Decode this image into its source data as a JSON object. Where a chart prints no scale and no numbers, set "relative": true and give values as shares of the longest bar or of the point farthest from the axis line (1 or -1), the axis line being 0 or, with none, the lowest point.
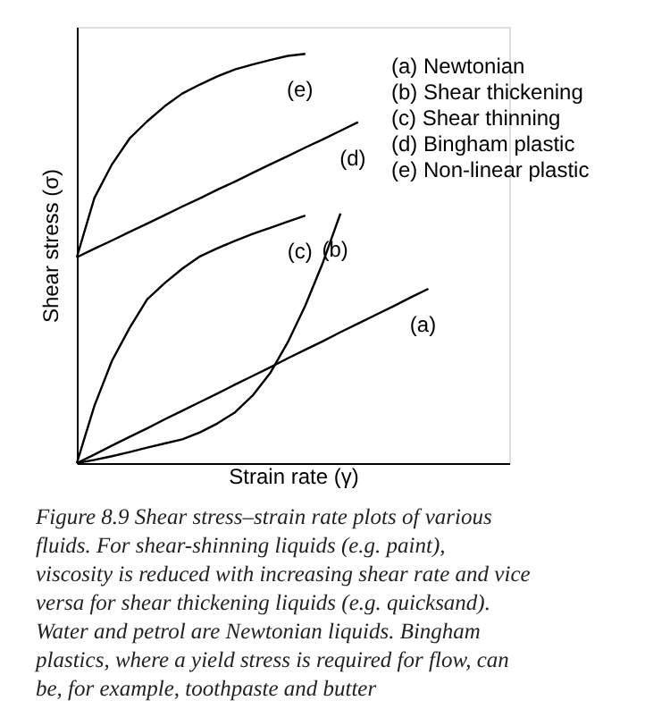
{
  "chart_data": {
    "type": "line",
    "relative": true,
    "xlabel": "Strain rate (γ)",
    "ylabel": "Shear stress (σ)",
    "grid": false,
    "marker": "none",
    "line_style": "solid",
    "categories": [
      null,
      null,
      null,
      null,
      null,
      null,
      null,
      null,
      null,
      null,
      null,
      null,
      null,
      null,
      null,
      null,
      null,
      null,
      null,
      null,
      null,
      null,
      null,
      null,
      null
    ],
    "series": [
      {
        "name": "(a)",
        "color": "#000000",
        "values": [
          0,
          0.021,
          0.043,
          0.064,
          0.085,
          0.107,
          0.128,
          0.149,
          0.17,
          0.192,
          0.213,
          0.234,
          0.256,
          0.277,
          0.298,
          0.32,
          0.341,
          0.362,
          0.383,
          0.405,
          0.426,
          null,
          null,
          null,
          null
        ]
      },
      {
        "name": "(b)",
        "color": "#000000",
        "values": [
          0,
          0.008,
          0.017,
          0.027,
          0.038,
          0.048,
          0.058,
          0.075,
          0.097,
          0.124,
          0.165,
          0.22,
          0.295,
          0.385,
          0.49,
          0.61,
          null,
          null,
          null,
          null,
          null,
          null,
          null,
          null,
          null
        ]
      },
      {
        "name": "(c)",
        "color": "#000000",
        "values": [
          0,
          0.14,
          0.25,
          0.33,
          0.4,
          0.44,
          0.475,
          0.505,
          0.525,
          0.543,
          0.56,
          0.575,
          0.59,
          0.605,
          null,
          null,
          null,
          null,
          null,
          null,
          null,
          null,
          null,
          null,
          null
        ]
      },
      {
        "name": "(d)",
        "color": "#000000",
        "values": [
          0.503,
          0.524,
          0.544,
          0.565,
          0.585,
          0.606,
          0.627,
          0.647,
          0.668,
          0.688,
          0.709,
          0.73,
          0.75,
          0.771,
          0.791,
          0.812,
          0.833,
          null,
          null,
          null,
          null,
          null,
          null,
          null,
          null
        ]
      },
      {
        "name": "(e)",
        "color": "#000000",
        "values": [
          0.503,
          0.648,
          0.73,
          0.793,
          0.835,
          0.872,
          0.903,
          0.925,
          0.945,
          0.962,
          0.974,
          0.985,
          0.995,
          1,
          null,
          null,
          null,
          null,
          null,
          null,
          null,
          null,
          null,
          null,
          null
        ]
      }
    ],
    "annotations": [
      "(a) Newtonian",
      "(b) Shear thickening",
      "(c) Shear thinning",
      "(d) Bingham plastic",
      "(e) Non-linear plastic",
      "Figure 8.9  Shear stress–strain rate plots of various fluids. For shear-shinning liquids (e.g. paint), viscosity is reduced with increasing shear rate and vice versa for shear thickening liquids (e.g. quicksand). Water and petrol are Newtonian liquids. Bingham plastics, where a yield stress is required for flow, can be, for example, toothpaste and butter"
    ]
  }
}
